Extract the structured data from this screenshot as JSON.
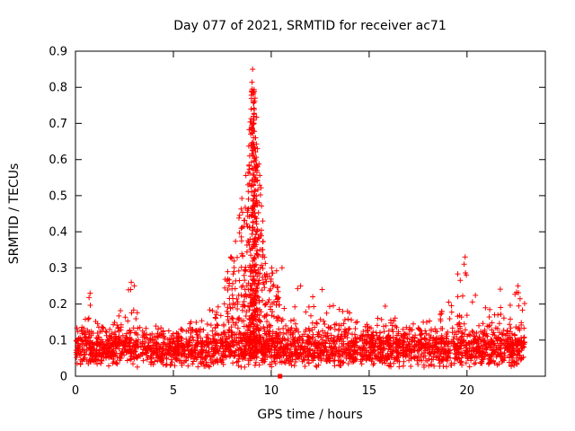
{
  "chart_data": {
    "type": "scatter",
    "title": "Day 077 of 2021, SRMTID for receiver ac71",
    "xlabel": "GPS time / hours",
    "ylabel": "SRMTID / TECUs",
    "xlim": [
      0,
      24
    ],
    "ylim": [
      0,
      0.9
    ],
    "x_ticks": [
      0,
      5,
      10,
      15,
      20
    ],
    "x_tick_labels": [
      "0",
      "5",
      "10",
      "15",
      "20"
    ],
    "y_ticks": [
      0,
      0.1,
      0.2,
      0.3,
      0.4,
      0.5,
      0.6,
      0.7,
      0.8,
      0.9
    ],
    "y_tick_labels": [
      "0",
      "0.1",
      "0.2",
      "0.3",
      "0.4",
      "0.5",
      "0.6",
      "0.7",
      "0.8",
      "0.9"
    ],
    "grid": false,
    "legend": "none",
    "marker": "plus",
    "marker_color": "#ff0000",
    "axis_color": "#000000",
    "background": "#ffffff",
    "series": [
      {
        "name": "SRMTID",
        "description": "Dense noisy scatter of roughly 3300 red plus markers. Baseline band 0.03-0.15 TECUs across 0-23 h. Large TID peak centered near 9.0 h reaching 0.85, with dense column 0.15-0.5 between 8.5-9.6 h. Secondary bursts: 0.23 near 0.7 h, 0.26 near 2.8 h, 0.2-0.25 between 11-13 h, 0.33 near 19.9 h, 0.25 near 22.6 h. Data ends near 23 h.",
        "generator": {
          "seed": 77,
          "x_range": [
            0.03,
            22.95
          ],
          "baseline": {
            "n": 2300,
            "mean": 0.075,
            "sd": 0.027,
            "min": 0.025,
            "max": 0.17
          },
          "envelope_max": [
            [
              0,
              0.16
            ],
            [
              0.7,
              0.23
            ],
            [
              1.5,
              0.14
            ],
            [
              2.8,
              0.26
            ],
            [
              3.5,
              0.14
            ],
            [
              5,
              0.14
            ],
            [
              6.3,
              0.16
            ],
            [
              7.2,
              0.2
            ],
            [
              7.9,
              0.33
            ],
            [
              8.4,
              0.45
            ],
            [
              8.8,
              0.62
            ],
            [
              9.05,
              0.85
            ],
            [
              9.3,
              0.7
            ],
            [
              9.6,
              0.42
            ],
            [
              9.9,
              0.3
            ],
            [
              10.3,
              0.3
            ],
            [
              10.8,
              0.22
            ],
            [
              11.3,
              0.25
            ],
            [
              12,
              0.23
            ],
            [
              12.6,
              0.25
            ],
            [
              13.2,
              0.22
            ],
            [
              14,
              0.18
            ],
            [
              15,
              0.17
            ],
            [
              15.8,
              0.2
            ],
            [
              16.5,
              0.17
            ],
            [
              17.5,
              0.15
            ],
            [
              18.3,
              0.16
            ],
            [
              19,
              0.2
            ],
            [
              19.8,
              0.33
            ],
            [
              20.3,
              0.26
            ],
            [
              21,
              0.2
            ],
            [
              21.7,
              0.25
            ],
            [
              22.4,
              0.25
            ],
            [
              22.95,
              0.24
            ]
          ],
          "peak_cluster": {
            "x_mean": 9.08,
            "x_sd": 0.35,
            "x_min": 7.6,
            "x_max": 10.4,
            "n": 420,
            "skew": 1.7
          },
          "core_column": {
            "x_mean": 9.07,
            "x_sd": 0.09,
            "x_min": 8.75,
            "x_max": 9.45,
            "n": 130,
            "skew": 1.15
          },
          "bump_extras": {
            "n": 520,
            "skew": 2.2
          }
        },
        "notable_points": [
          [
            9.05,
            0.85
          ],
          [
            9.0,
            0.79
          ],
          [
            8.97,
            0.74
          ],
          [
            9.12,
            0.7
          ],
          [
            9.2,
            0.66
          ],
          [
            8.9,
            0.61
          ],
          [
            9.3,
            0.58
          ],
          [
            9.08,
            0.53
          ],
          [
            10.55,
            0.3
          ],
          [
            19.9,
            0.33
          ],
          [
            19.85,
            0.31
          ],
          [
            2.85,
            0.26
          ],
          [
            3.0,
            0.25
          ],
          [
            0.75,
            0.23
          ],
          [
            22.6,
            0.25
          ],
          [
            11.5,
            0.25
          ],
          [
            12.6,
            0.24
          ],
          [
            7.95,
            0.33
          ],
          [
            8.1,
            0.29
          ]
        ]
      }
    ],
    "zero_marker": {
      "x": 10.45,
      "y": 0,
      "shape": "filled-square",
      "color": "#ff0000"
    }
  }
}
